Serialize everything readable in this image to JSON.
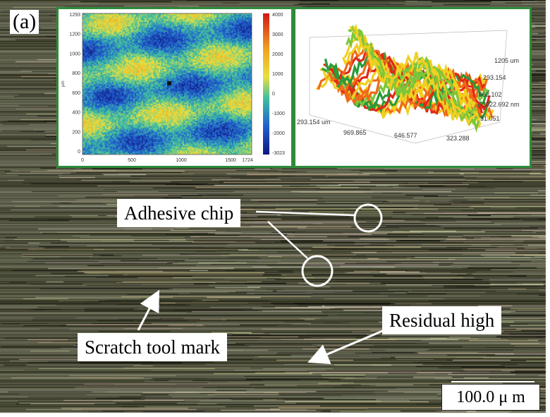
{
  "panel_label": "(a)",
  "annotations": {
    "adhesive_chip": "Adhesive chip",
    "scratch_tool_mark": "Scratch tool mark",
    "residual_high": "Residual high"
  },
  "scale_bar": {
    "label": "100.0 μ m"
  },
  "inset_height_map": {
    "y_axis_unit": "μm",
    "y_ticks": [
      "1293",
      "1200",
      "1000",
      "800",
      "600",
      "400",
      "200",
      "0"
    ],
    "x_ticks": [
      "0",
      "500",
      "1000",
      "1500",
      "1724"
    ],
    "colorbar_ticks": [
      "4000",
      "3000",
      "2000",
      "1000",
      "0",
      "-1000",
      "-2000",
      "-3023"
    ]
  },
  "inset_3d_surface": {
    "axis_labels": [
      "1205 um",
      "293.154",
      "862.102",
      "-3022.692 nm",
      "31.051",
      "293.154 um",
      "969.865",
      "646.577",
      "323.288"
    ]
  },
  "colors": {
    "inset_border": "#2e8b3a",
    "annotation_line": "#ffffff"
  }
}
